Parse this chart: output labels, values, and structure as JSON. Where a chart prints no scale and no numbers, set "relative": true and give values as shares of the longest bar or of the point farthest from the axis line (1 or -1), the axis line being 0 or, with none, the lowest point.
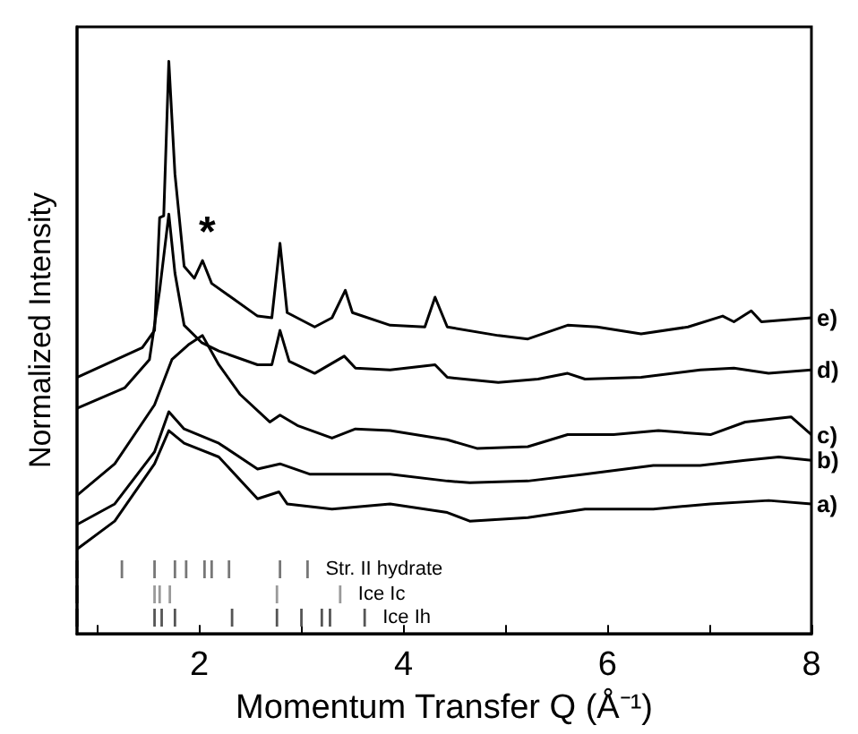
{
  "chart_data": [
    {
      "type": "line",
      "relative": true,
      "xlabel": "Momentum Transfer Q (Å⁻¹)",
      "ylabel": "Normalized Intensity",
      "xlim": [
        0.8,
        8
      ],
      "xticks": [
        {
          "value": 1,
          "label": null
        },
        2,
        {
          "value": 3,
          "label": null
        },
        4,
        {
          "value": 5,
          "label": null
        },
        6,
        {
          "value": 7,
          "label": null
        },
        8
      ],
      "grid": false,
      "legend": false,
      "marker": "none",
      "line_style": "solid",
      "annotations": [
        "*"
      ],
      "series": [
        {
          "name": "e)",
          "color": "#000000",
          "x": [
            0.8,
            1.44,
            1.56,
            1.61,
            1.65,
            1.7,
            1.76,
            1.85,
            1.95,
            2.03,
            2.12,
            2.57,
            2.71,
            2.79,
            2.86,
            3.13,
            3.3,
            3.43,
            3.5,
            3.87,
            4.21,
            4.31,
            4.43,
            4.93,
            5.22,
            5.61,
            5.9,
            6.33,
            6.79,
            7.13,
            7.24,
            7.41,
            7.51,
            8.0
          ],
          "values": [
            0.448,
            0.5,
            0.53,
            0.727,
            0.73,
            1.0,
            0.803,
            0.642,
            0.621,
            0.652,
            0.612,
            0.555,
            0.552,
            0.682,
            0.561,
            0.536,
            0.552,
            0.6,
            0.561,
            0.539,
            0.536,
            0.588,
            0.536,
            0.521,
            0.515,
            0.539,
            0.536,
            0.524,
            0.536,
            0.555,
            0.545,
            0.564,
            0.545,
            0.552
          ]
        },
        {
          "name": "d)",
          "color": "#000000",
          "x": [
            0.8,
            1.27,
            1.51,
            1.61,
            1.7,
            1.76,
            1.85,
            2.02,
            2.19,
            2.57,
            2.71,
            2.79,
            2.88,
            3.13,
            3.42,
            3.53,
            3.87,
            4.31,
            4.43,
            4.93,
            5.32,
            5.61,
            5.78,
            6.33,
            6.91,
            7.24,
            7.58,
            8.0
          ],
          "values": [
            0.394,
            0.43,
            0.479,
            0.6,
            0.733,
            0.63,
            0.539,
            0.509,
            0.494,
            0.47,
            0.47,
            0.53,
            0.476,
            0.455,
            0.485,
            0.464,
            0.461,
            0.47,
            0.448,
            0.439,
            0.445,
            0.455,
            0.445,
            0.448,
            0.461,
            0.464,
            0.455,
            0.461
          ]
        },
        {
          "name": "c)",
          "color": "#000000",
          "x": [
            0.8,
            1.17,
            1.56,
            1.73,
            1.9,
            2.03,
            2.19,
            2.4,
            2.69,
            2.79,
            2.96,
            3.3,
            3.53,
            3.87,
            4.43,
            4.72,
            5.22,
            5.61,
            6.06,
            6.5,
            7.01,
            7.35,
            7.8,
            8.0
          ],
          "values": [
            0.242,
            0.297,
            0.4,
            0.479,
            0.506,
            0.521,
            0.47,
            0.418,
            0.37,
            0.382,
            0.364,
            0.342,
            0.358,
            0.355,
            0.339,
            0.324,
            0.327,
            0.348,
            0.348,
            0.355,
            0.348,
            0.37,
            0.379,
            0.348
          ]
        },
        {
          "name": "b)",
          "color": "#000000",
          "x": [
            0.8,
            1.17,
            1.56,
            1.7,
            1.85,
            2.19,
            2.57,
            2.79,
            3.08,
            3.87,
            4.43,
            4.65,
            5.22,
            5.78,
            6.45,
            6.91,
            7.35,
            7.68,
            8.0
          ],
          "values": [
            0.191,
            0.227,
            0.318,
            0.388,
            0.358,
            0.333,
            0.288,
            0.297,
            0.279,
            0.279,
            0.267,
            0.264,
            0.267,
            0.279,
            0.294,
            0.294,
            0.303,
            0.309,
            0.303
          ]
        },
        {
          "name": "a)",
          "color": "#000000",
          "x": [
            0.8,
            1.17,
            1.56,
            1.7,
            1.85,
            2.19,
            2.57,
            2.78,
            2.86,
            3.3,
            3.87,
            4.43,
            4.65,
            5.22,
            5.78,
            6.45,
            7.01,
            7.58,
            8.0
          ],
          "values": [
            0.148,
            0.197,
            0.297,
            0.355,
            0.333,
            0.309,
            0.236,
            0.248,
            0.227,
            0.218,
            0.227,
            0.212,
            0.197,
            0.203,
            0.218,
            0.218,
            0.227,
            0.233,
            0.227
          ]
        }
      ]
    },
    {
      "type": "bar",
      "relative": true,
      "xlim": [
        0.8,
        8
      ],
      "series": [
        {
          "name": "Str. II hydrate",
          "color": "#777777",
          "x": [
            1.24,
            1.56,
            1.76,
            1.87,
            2.05,
            2.12,
            2.29,
            2.79,
            3.06
          ],
          "values": [
            1,
            1,
            1,
            1,
            1,
            1,
            1,
            1,
            1
          ]
        }
      ]
    },
    {
      "type": "bar",
      "relative": true,
      "xlim": [
        0.8,
        8
      ],
      "series": [
        {
          "name": "Ice Ic",
          "color": "#9a9a9a",
          "x": [
            1.56,
            1.61,
            1.71,
            2.76,
            3.38
          ],
          "values": [
            1,
            1,
            1,
            1,
            1
          ]
        }
      ]
    },
    {
      "type": "bar",
      "relative": true,
      "xlim": [
        0.8,
        8
      ],
      "series": [
        {
          "name": "Ice Ih",
          "color": "#555555",
          "x": [
            1.56,
            1.63,
            1.76,
            2.32,
            2.76,
            3.0,
            3.2,
            3.28,
            3.62
          ],
          "values": [
            1,
            1,
            1,
            1,
            1,
            1,
            1,
            1,
            1
          ]
        }
      ]
    }
  ]
}
